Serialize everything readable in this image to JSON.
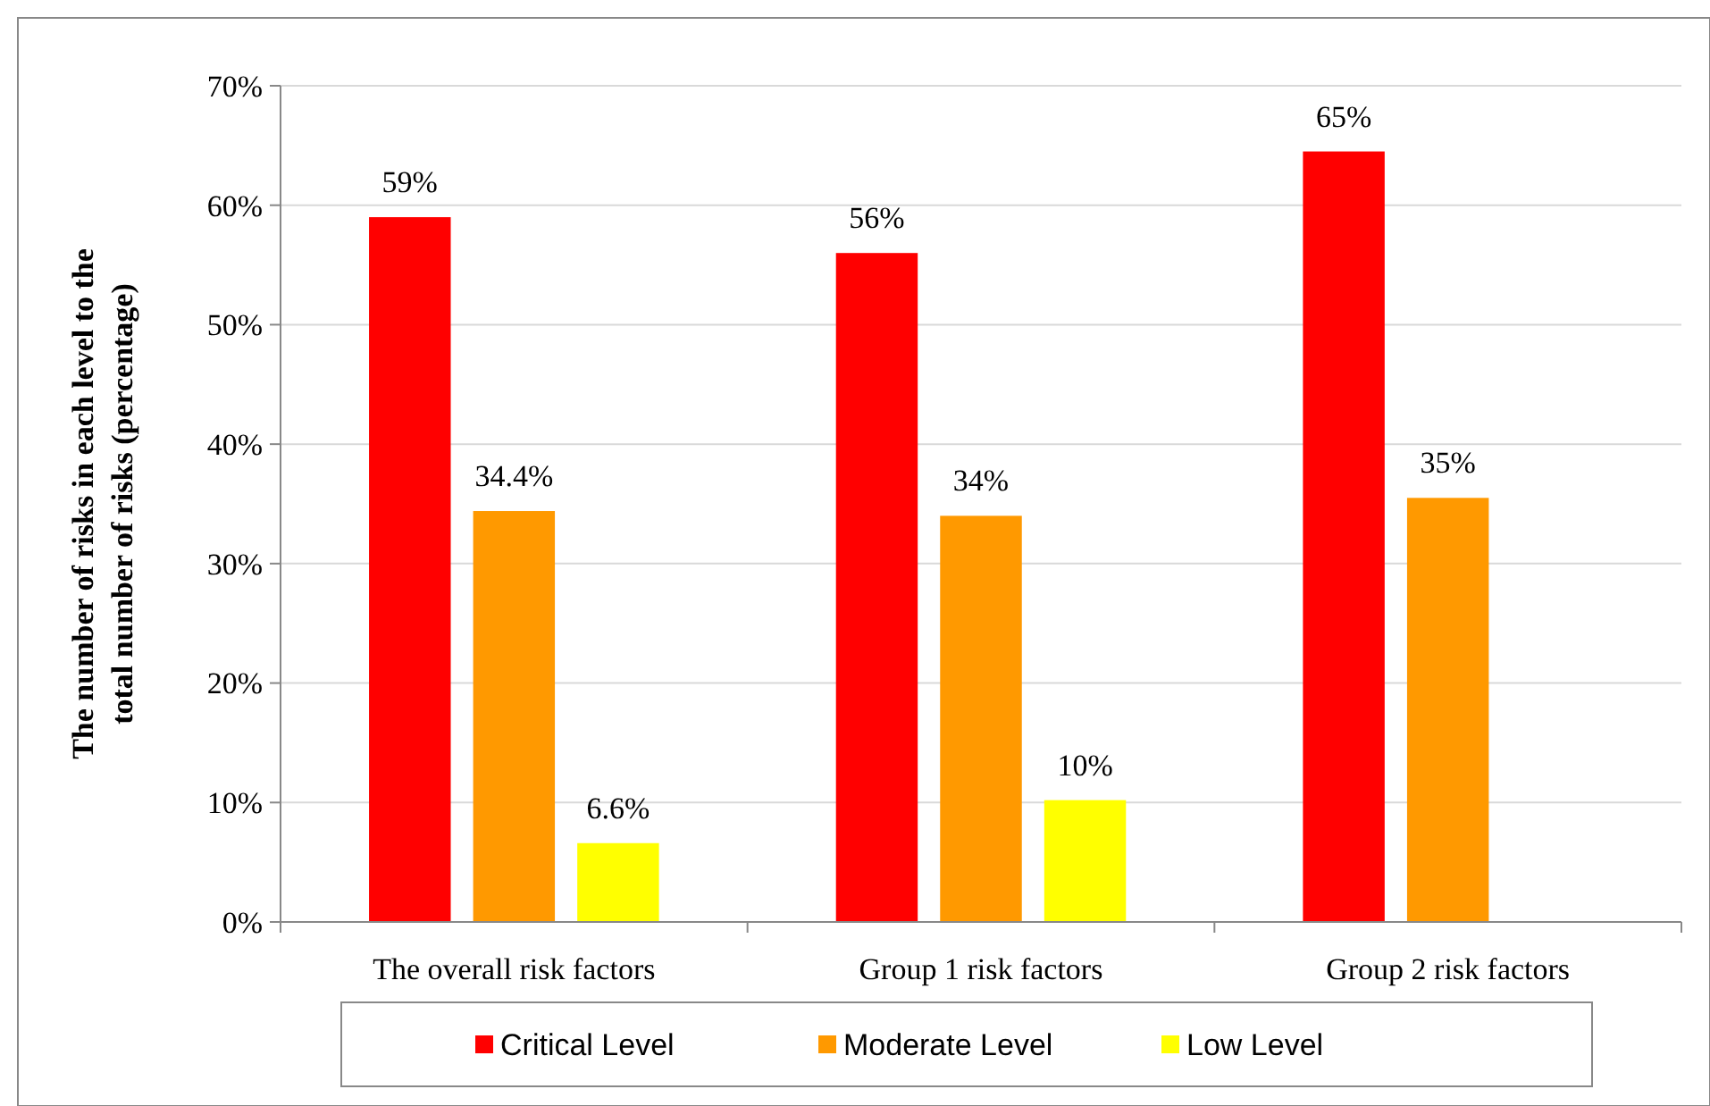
{
  "chart_data": {
    "type": "bar",
    "ylabel": "The number of risks in each level to the total number of risks (percentage)",
    "categories": [
      "The overall risk factors",
      "Group 1 risk factors",
      "Group 2 risk factors"
    ],
    "series": [
      {
        "name": "Critical Level",
        "color": "#ff0000",
        "values": [
          59,
          56,
          64.5
        ],
        "value_labels": [
          "59%",
          "56%",
          "65%"
        ]
      },
      {
        "name": "Moderate Level",
        "color": "#ff9900",
        "values": [
          34.4,
          34,
          35.5
        ],
        "value_labels": [
          "34.4%",
          "34%",
          "35%"
        ]
      },
      {
        "name": "Low Level",
        "color": "#ffff00",
        "values": [
          6.6,
          10.2,
          null
        ],
        "value_labels": [
          "6.6%",
          "10%",
          null
        ]
      }
    ],
    "ylim": [
      0,
      70
    ],
    "yticks": [
      {
        "value": 0,
        "label": "0%"
      },
      {
        "value": 10,
        "label": "10%"
      },
      {
        "value": 20,
        "label": "20%"
      },
      {
        "value": 30,
        "label": "30%"
      },
      {
        "value": 40,
        "label": "40%"
      },
      {
        "value": 50,
        "label": "50%"
      },
      {
        "value": 60,
        "label": "60%"
      },
      {
        "value": 70,
        "label": "70%"
      }
    ],
    "grid": "y",
    "legend": "bottom"
  }
}
